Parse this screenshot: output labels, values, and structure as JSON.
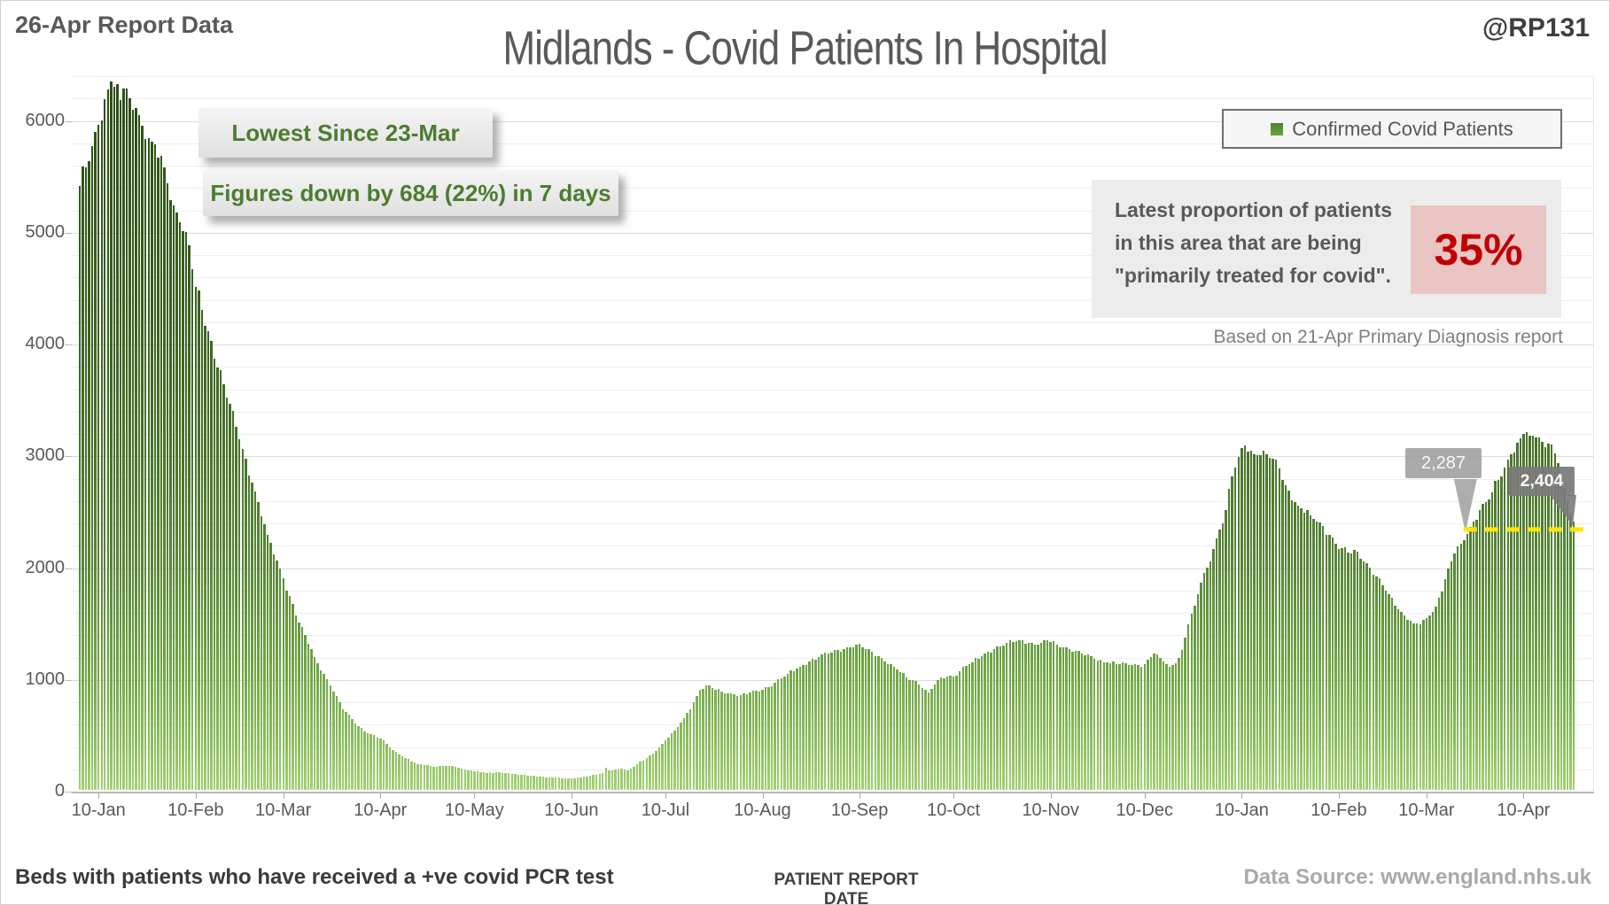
{
  "header": {
    "report_badge": "26-Apr Report Data",
    "title": "Midlands - Covid Patients In Hospital",
    "handle": "@RP131"
  },
  "annotations": {
    "box1": "Lowest Since 23-Mar",
    "box2": "Figures down by 684 (22%) in 7 days"
  },
  "legend": {
    "label": "Confirmed Covid Patients",
    "marker_color": "#4e812d"
  },
  "info_box": {
    "lines": [
      "Latest proportion of patients",
      "in this area that are being",
      "\"primarily treated for covid\"."
    ],
    "value": "35%",
    "value_color": "#c00000",
    "value_bg": "#eac5c3",
    "footnote": "Based on 21-Apr Primary Diagnosis report"
  },
  "callouts": [
    {
      "label": "2,287",
      "date": "2022-03-23",
      "value": 2287
    },
    {
      "label": "2,404",
      "date": "2022-04-26",
      "value": 2404
    }
  ],
  "threshold_line": {
    "color": "#ffe600",
    "from_date": "2022-03-23",
    "to_plot_right": true
  },
  "footer": {
    "left": "Beds with patients who have received a +ve covid PCR test",
    "right": "Data Source: www.england.nhs.uk"
  },
  "colors": {
    "accent_green": "#4c7c30",
    "bar_top": "#2c4f15",
    "bar_bottom": "#a3d075",
    "axis_text": "#595959",
    "value_red": "#c00000",
    "threshold_yellow": "#ffe600"
  },
  "chart_data": {
    "type": "bar",
    "title": "Midlands - Covid Patients In Hospital",
    "x_axis_title": "PATIENT REPORT DATE",
    "ylabel": "",
    "start_date": "2021-01-04",
    "end_date": "2022-04-26",
    "ylim": [
      0,
      6400
    ],
    "gridline_step": 200,
    "grid": true,
    "legend_position": "top-right",
    "y_ticks": [
      0,
      1000,
      2000,
      3000,
      4000,
      5000,
      6000
    ],
    "x_ticks": [
      {
        "date": "2021-01-10",
        "label": "10-Jan"
      },
      {
        "date": "2021-02-10",
        "label": "10-Feb"
      },
      {
        "date": "2021-03-10",
        "label": "10-Mar"
      },
      {
        "date": "2021-04-10",
        "label": "10-Apr"
      },
      {
        "date": "2021-05-10",
        "label": "10-May"
      },
      {
        "date": "2021-06-10",
        "label": "10-Jun"
      },
      {
        "date": "2021-07-10",
        "label": "10-Jul"
      },
      {
        "date": "2021-08-10",
        "label": "10-Aug"
      },
      {
        "date": "2021-09-10",
        "label": "10-Sep"
      },
      {
        "date": "2021-10-10",
        "label": "10-Oct"
      },
      {
        "date": "2021-11-10",
        "label": "10-Nov"
      },
      {
        "date": "2021-12-10",
        "label": "10-Dec"
      },
      {
        "date": "2022-01-10",
        "label": "10-Jan"
      },
      {
        "date": "2022-02-10",
        "label": "10-Feb"
      },
      {
        "date": "2022-03-10",
        "label": "10-Mar"
      },
      {
        "date": "2022-04-10",
        "label": "10-Apr"
      }
    ],
    "series": [
      {
        "name": "Confirmed Covid Patients",
        "note": "daily values; keypoints read from chart, intermediate days linearly interpolated",
        "keypoints": [
          [
            "2021-01-04",
            5400
          ],
          [
            "2021-01-06",
            5570
          ],
          [
            "2021-01-08",
            5760
          ],
          [
            "2021-01-10",
            5950
          ],
          [
            "2021-01-12",
            6180
          ],
          [
            "2021-01-14",
            6340
          ],
          [
            "2021-01-15",
            6290
          ],
          [
            "2021-01-16",
            6310
          ],
          [
            "2021-01-17",
            6170
          ],
          [
            "2021-01-18",
            6270
          ],
          [
            "2021-01-20",
            6190
          ],
          [
            "2021-01-22",
            6100
          ],
          [
            "2021-01-24",
            5940
          ],
          [
            "2021-01-27",
            5800
          ],
          [
            "2021-01-31",
            5570
          ],
          [
            "2021-02-03",
            5230
          ],
          [
            "2021-02-05",
            5080
          ],
          [
            "2021-02-07",
            4990
          ],
          [
            "2021-02-08",
            4870
          ],
          [
            "2021-02-10",
            4500
          ],
          [
            "2021-02-14",
            4100
          ],
          [
            "2021-02-19",
            3630
          ],
          [
            "2021-02-24",
            3140
          ],
          [
            "2021-02-28",
            2750
          ],
          [
            "2021-03-05",
            2280
          ],
          [
            "2021-03-10",
            1890
          ],
          [
            "2021-03-15",
            1500
          ],
          [
            "2021-03-20",
            1190
          ],
          [
            "2021-03-25",
            935
          ],
          [
            "2021-03-29",
            725
          ],
          [
            "2021-04-03",
            570
          ],
          [
            "2021-04-06",
            510
          ],
          [
            "2021-04-10",
            460
          ],
          [
            "2021-04-14",
            360
          ],
          [
            "2021-04-17",
            300
          ],
          [
            "2021-04-22",
            232
          ],
          [
            "2021-04-27",
            210
          ],
          [
            "2021-05-01",
            218
          ],
          [
            "2021-05-04",
            205
          ],
          [
            "2021-05-07",
            185
          ],
          [
            "2021-05-10",
            168
          ],
          [
            "2021-05-14",
            152
          ],
          [
            "2021-05-18",
            158
          ],
          [
            "2021-05-22",
            146
          ],
          [
            "2021-05-27",
            128
          ],
          [
            "2021-06-01",
            116
          ],
          [
            "2021-06-05",
            108
          ],
          [
            "2021-06-10",
            100
          ],
          [
            "2021-06-14",
            118
          ],
          [
            "2021-06-17",
            132
          ],
          [
            "2021-06-20",
            148
          ],
          [
            "2021-06-21",
            200
          ],
          [
            "2021-06-22",
            172
          ],
          [
            "2021-06-24",
            182
          ],
          [
            "2021-06-26",
            188
          ],
          [
            "2021-06-28",
            172
          ],
          [
            "2021-07-01",
            230
          ],
          [
            "2021-07-04",
            282
          ],
          [
            "2021-07-07",
            352
          ],
          [
            "2021-07-10",
            442
          ],
          [
            "2021-07-13",
            532
          ],
          [
            "2021-07-16",
            640
          ],
          [
            "2021-07-19",
            782
          ],
          [
            "2021-07-21",
            898
          ],
          [
            "2021-07-23",
            935
          ],
          [
            "2021-07-25",
            908
          ],
          [
            "2021-07-28",
            878
          ],
          [
            "2021-08-01",
            856
          ],
          [
            "2021-08-03",
            844
          ],
          [
            "2021-08-06",
            868
          ],
          [
            "2021-08-10",
            896
          ],
          [
            "2021-08-14",
            962
          ],
          [
            "2021-08-18",
            1038
          ],
          [
            "2021-08-22",
            1104
          ],
          [
            "2021-08-25",
            1152
          ],
          [
            "2021-08-28",
            1186
          ],
          [
            "2021-08-31",
            1222
          ],
          [
            "2021-09-03",
            1252
          ],
          [
            "2021-09-06",
            1272
          ],
          [
            "2021-09-09",
            1302
          ],
          [
            "2021-09-12",
            1262
          ],
          [
            "2021-09-16",
            1196
          ],
          [
            "2021-09-21",
            1102
          ],
          [
            "2021-09-25",
            1004
          ],
          [
            "2021-09-28",
            976
          ],
          [
            "2021-10-02",
            872
          ],
          [
            "2021-10-05",
            984
          ],
          [
            "2021-10-08",
            1012
          ],
          [
            "2021-10-11",
            1024
          ],
          [
            "2021-10-13",
            1098
          ],
          [
            "2021-10-16",
            1142
          ],
          [
            "2021-10-20",
            1222
          ],
          [
            "2021-10-24",
            1282
          ],
          [
            "2021-10-27",
            1316
          ],
          [
            "2021-10-31",
            1342
          ],
          [
            "2021-11-03",
            1318
          ],
          [
            "2021-11-06",
            1296
          ],
          [
            "2021-11-09",
            1338
          ],
          [
            "2021-11-12",
            1302
          ],
          [
            "2021-11-16",
            1262
          ],
          [
            "2021-11-20",
            1218
          ],
          [
            "2021-11-24",
            1172
          ],
          [
            "2021-11-28",
            1142
          ],
          [
            "2021-12-02",
            1126
          ],
          [
            "2021-12-06",
            1118
          ],
          [
            "2021-12-10",
            1126
          ],
          [
            "2021-12-13",
            1218
          ],
          [
            "2021-12-15",
            1182
          ],
          [
            "2021-12-18",
            1102
          ],
          [
            "2021-12-20",
            1132
          ],
          [
            "2021-12-22",
            1252
          ],
          [
            "2021-12-24",
            1482
          ],
          [
            "2021-12-26",
            1650
          ],
          [
            "2021-12-28",
            1856
          ],
          [
            "2021-12-30",
            1992
          ],
          [
            "2022-01-01",
            2152
          ],
          [
            "2022-01-03",
            2332
          ],
          [
            "2022-01-05",
            2502
          ],
          [
            "2022-01-07",
            2806
          ],
          [
            "2022-01-09",
            2982
          ],
          [
            "2022-01-11",
            3082
          ],
          [
            "2022-01-13",
            3032
          ],
          [
            "2022-01-15",
            2992
          ],
          [
            "2022-01-18",
            3002
          ],
          [
            "2022-01-20",
            2962
          ],
          [
            "2022-01-22",
            2872
          ],
          [
            "2022-01-24",
            2726
          ],
          [
            "2022-01-28",
            2544
          ],
          [
            "2022-02-01",
            2452
          ],
          [
            "2022-02-04",
            2396
          ],
          [
            "2022-02-07",
            2282
          ],
          [
            "2022-02-10",
            2158
          ],
          [
            "2022-02-13",
            2122
          ],
          [
            "2022-02-16",
            2132
          ],
          [
            "2022-02-19",
            2032
          ],
          [
            "2022-02-22",
            1906
          ],
          [
            "2022-02-26",
            1748
          ],
          [
            "2022-03-02",
            1592
          ],
          [
            "2022-03-06",
            1492
          ],
          [
            "2022-03-08",
            1478
          ],
          [
            "2022-03-10",
            1536
          ],
          [
            "2022-03-13",
            1642
          ],
          [
            "2022-03-16",
            1882
          ],
          [
            "2022-03-19",
            2118
          ],
          [
            "2022-03-21",
            2202
          ],
          [
            "2022-03-23",
            2287
          ],
          [
            "2022-03-25",
            2402
          ],
          [
            "2022-03-27",
            2502
          ],
          [
            "2022-03-29",
            2572
          ],
          [
            "2022-03-31",
            2662
          ],
          [
            "2022-04-02",
            2772
          ],
          [
            "2022-04-04",
            2882
          ],
          [
            "2022-04-06",
            3002
          ],
          [
            "2022-04-08",
            3102
          ],
          [
            "2022-04-10",
            3182
          ],
          [
            "2022-04-11",
            3202
          ],
          [
            "2022-04-12",
            3172
          ],
          [
            "2022-04-14",
            3152
          ],
          [
            "2022-04-16",
            3112
          ],
          [
            "2022-04-18",
            3096
          ],
          [
            "2022-04-19",
            3088
          ],
          [
            "2022-04-20",
            3012
          ],
          [
            "2022-04-21",
            2922
          ],
          [
            "2022-04-22",
            2822
          ],
          [
            "2022-04-23",
            2702
          ],
          [
            "2022-04-24",
            2582
          ],
          [
            "2022-04-25",
            2482
          ],
          [
            "2022-04-26",
            2404
          ]
        ]
      }
    ]
  }
}
